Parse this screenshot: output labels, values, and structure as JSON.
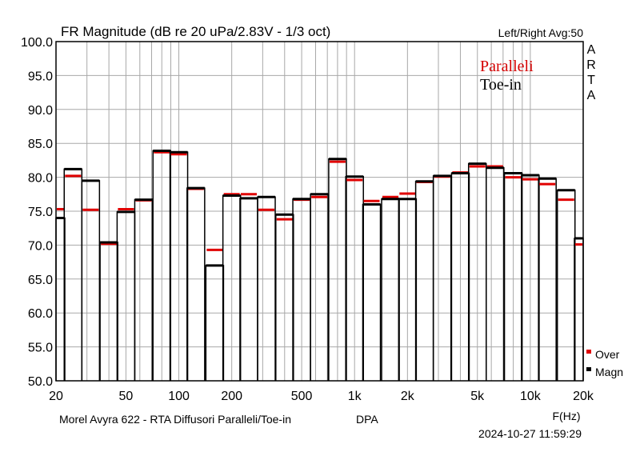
{
  "chart_data": {
    "type": "bar",
    "title": "FR Magnitude (dB re 20 uPa/2.83V - 1/3 oct)",
    "top_right_label": "Left/Right  Avg:50",
    "brand_letters": [
      "A",
      "R",
      "T",
      "A"
    ],
    "xlabel": "F(Hz)",
    "ylim": [
      50,
      100
    ],
    "xlim": [
      20,
      20000
    ],
    "x_scale": "log",
    "grid": true,
    "y_ticks": [
      "100.0",
      "95.0",
      "90.0",
      "85.0",
      "80.0",
      "75.0",
      "70.0",
      "65.0",
      "60.0",
      "55.0",
      "50.0"
    ],
    "x_ticks": [
      {
        "value": 20,
        "label": "20"
      },
      {
        "value": 50,
        "label": "50"
      },
      {
        "value": 100,
        "label": "100"
      },
      {
        "value": 200,
        "label": "200"
      },
      {
        "value": 500,
        "label": "500"
      },
      {
        "value": 1000,
        "label": "1k"
      },
      {
        "value": 2000,
        "label": "2k"
      },
      {
        "value": 5000,
        "label": "5k"
      },
      {
        "value": 10000,
        "label": "10k"
      },
      {
        "value": 20000,
        "label": "20k"
      }
    ],
    "bands": [
      20,
      25,
      31.5,
      40,
      50,
      63,
      80,
      100,
      125,
      160,
      200,
      250,
      315,
      400,
      500,
      630,
      800,
      1000,
      1250,
      1600,
      2000,
      2500,
      3150,
      4000,
      5000,
      6300,
      8000,
      10000,
      12500,
      16000,
      20000
    ],
    "inner_legend": [
      {
        "label": "Paralleli",
        "color": "#d40000"
      },
      {
        "label": "Toe-in",
        "color": "#000000"
      }
    ],
    "legend": [
      {
        "label": "Over",
        "color": "#e00000"
      },
      {
        "label": "Magn",
        "color": "#000000"
      }
    ],
    "series": [
      {
        "name": "Magn",
        "color": "#000000",
        "values": [
          74.0,
          81.2,
          79.5,
          70.4,
          74.9,
          76.7,
          83.9,
          83.7,
          78.4,
          67.0,
          77.3,
          76.9,
          77.1,
          74.5,
          76.8,
          77.5,
          82.7,
          80.1,
          76.0,
          76.8,
          76.8,
          79.4,
          80.2,
          80.6,
          82.0,
          81.4,
          80.6,
          80.3,
          79.8,
          78.1,
          71.0
        ]
      },
      {
        "name": "Over",
        "color": "#e00000",
        "values": [
          75.3,
          80.2,
          75.2,
          70.2,
          75.3,
          76.6,
          83.7,
          83.4,
          78.3,
          69.3,
          77.5,
          77.5,
          75.2,
          73.8,
          76.7,
          77.1,
          82.3,
          79.6,
          76.5,
          77.1,
          77.6,
          79.3,
          80.1,
          80.7,
          81.6,
          81.6,
          80.0,
          79.7,
          79.0,
          76.7,
          70.1
        ]
      }
    ]
  },
  "footer": {
    "left": "Morel Avyra 622 - RTA Diffusori Paralleli/Toe-in",
    "dpa": "DPA",
    "timestamp": "2024-10-27  11:59:29"
  }
}
